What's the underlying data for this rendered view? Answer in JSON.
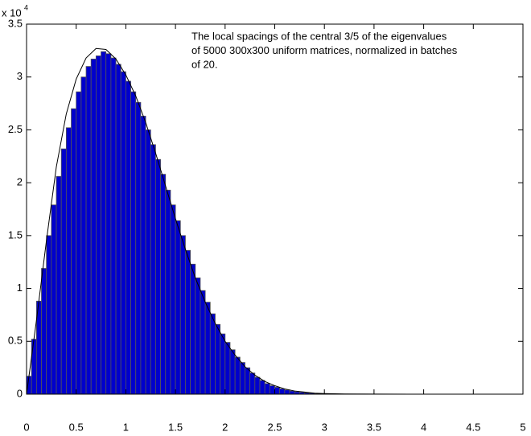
{
  "chart_data": {
    "type": "histogram",
    "annotation": [
      "The local spacings of the central 3/5 of the eigenvalues",
      "of 5000 300x300 uniform matrices, normalized in batches",
      "of 20."
    ],
    "y_multiplier": {
      "base": "x 10",
      "exponent": "4"
    },
    "bins": [
      0,
      0.05,
      0.1,
      0.15,
      0.2,
      0.25,
      0.3,
      0.35,
      0.4,
      0.45,
      0.5,
      0.55,
      0.6,
      0.65,
      0.7,
      0.75,
      0.8,
      0.85,
      0.9,
      0.95,
      1,
      1.05,
      1.1,
      1.15,
      1.2,
      1.25,
      1.3,
      1.35,
      1.4,
      1.45,
      1.5,
      1.55,
      1.6,
      1.65,
      1.7,
      1.75,
      1.8,
      1.85,
      1.9,
      1.95,
      2,
      2.05,
      2.1,
      2.15,
      2.2,
      2.25,
      2.3,
      2.35,
      2.4,
      2.45,
      2.5,
      2.55,
      2.6,
      2.65,
      2.7,
      2.75,
      2.8,
      2.85,
      2.9,
      2.95,
      3,
      3.05,
      3.1,
      3.15,
      3.2,
      3.25,
      3.3,
      3.35,
      3.4,
      3.45,
      3.5
    ],
    "values": [
      0.17,
      0.52,
      0.88,
      1.19,
      1.5,
      1.79,
      2.06,
      2.32,
      2.52,
      2.7,
      2.86,
      3.0,
      3.1,
      3.17,
      3.2,
      3.24,
      3.22,
      3.18,
      3.12,
      3.05,
      2.96,
      2.86,
      2.76,
      2.63,
      2.5,
      2.36,
      2.22,
      2.08,
      1.93,
      1.79,
      1.64,
      1.5,
      1.36,
      1.23,
      1.1,
      0.98,
      0.87,
      0.76,
      0.66,
      0.57,
      0.49,
      0.42,
      0.35,
      0.3,
      0.25,
      0.2,
      0.16,
      0.13,
      0.1,
      0.08,
      0.065,
      0.05,
      0.04,
      0.03,
      0.022,
      0.017,
      0.012,
      0.009,
      0.006,
      0.004,
      0.003,
      0.002,
      0.0015,
      0.001,
      0.0007,
      0.0005,
      0.0003,
      0.0002,
      0.0001,
      0.0001
    ],
    "color": "#0000cc",
    "edge_color": "#555555",
    "curve": {
      "color": "#000000",
      "x": [
        0,
        0.1,
        0.2,
        0.3,
        0.4,
        0.5,
        0.6,
        0.7,
        0.8,
        0.9,
        1,
        1.1,
        1.2,
        1.3,
        1.4,
        1.5,
        1.6,
        1.7,
        1.8,
        1.9,
        2,
        2.1,
        2.2,
        2.3,
        2.4,
        2.5,
        2.6,
        2.7,
        2.8,
        2.9,
        3,
        3.2,
        3.5,
        4,
        5
      ],
      "y": [
        0,
        0.7,
        1.45,
        2.15,
        2.65,
        2.98,
        3.18,
        3.27,
        3.26,
        3.17,
        3.02,
        2.82,
        2.57,
        2.28,
        1.97,
        1.66,
        1.37,
        1.1,
        0.87,
        0.67,
        0.5,
        0.37,
        0.26,
        0.18,
        0.12,
        0.08,
        0.05,
        0.03,
        0.02,
        0.01,
        0.006,
        0.002,
        0.0005,
        0,
        0
      ]
    },
    "xlim": [
      0,
      5
    ],
    "ylim": [
      0,
      3.5
    ],
    "xticks": [
      0,
      0.5,
      1,
      1.5,
      2,
      2.5,
      3,
      3.5,
      4,
      4.5,
      5
    ],
    "yticks": [
      0,
      0.5,
      1,
      1.5,
      2,
      2.5,
      3,
      3.5
    ]
  }
}
